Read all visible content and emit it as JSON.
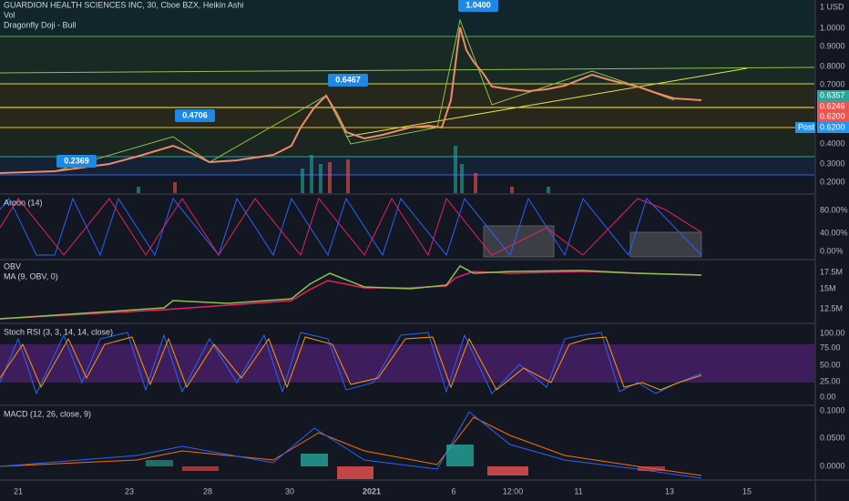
{
  "legends": {
    "main": "GUARDION HEALTH SCIENCES INC, 30, Cboe BZX, Heikin Ashi",
    "vol": "Vol",
    "pattern": "Dragonfly Doji - Bull",
    "aroon": "Aroon (14)",
    "obv": "OBV",
    "obv_ma": "MA (9, OBV, 0)",
    "stoch": "Stoch RSI (3, 3, 14, 14, close)",
    "macd": "MACD (12, 26, close, 9)"
  },
  "callouts": [
    "0.2369",
    "0.4706",
    "0.6467",
    "1.0400"
  ],
  "price_axis": [
    "1 USD",
    "1.0000",
    "0.9000",
    "0.8000",
    "0.7000",
    "0.4000",
    "0.3000",
    "0.2000"
  ],
  "price_tags": {
    "last": "0.6357",
    "bid": "0.6246",
    "ask": "0.6200",
    "post_label": "Post",
    "post": "0.6200"
  },
  "aroon_axis": [
    "80.00%",
    "40.00%",
    "0.00%"
  ],
  "obv_axis": [
    "17.5M",
    "15M",
    "12.5M"
  ],
  "stoch_axis": [
    "100.00",
    "75.00",
    "50.00",
    "25.00",
    "0.00"
  ],
  "macd_axis": [
    "0.1000",
    "0.0500",
    "0.0000"
  ],
  "time_axis": [
    "21",
    "23",
    "28",
    "30",
    "2021",
    "6",
    "12:00",
    "11",
    "13",
    "15"
  ]
}
